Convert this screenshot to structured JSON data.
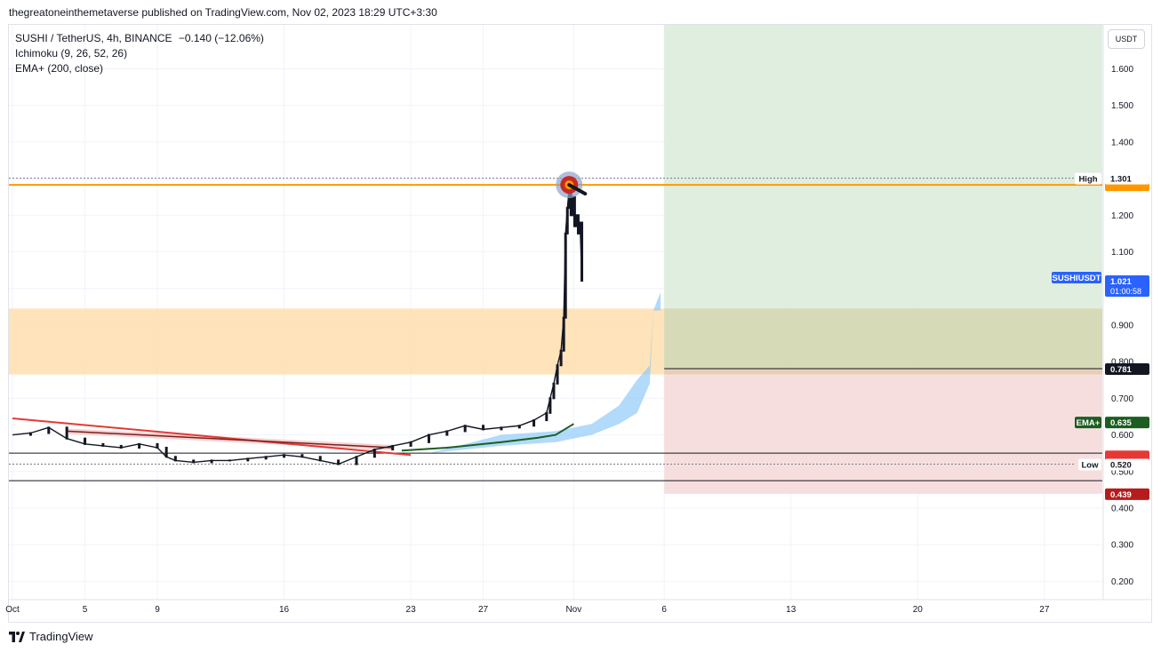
{
  "header": {
    "published_text": "thegreatoneinthemetaverse published on TradingView.com, Nov 02, 2023 18:29 UTC+3:30"
  },
  "legend": {
    "symbol_line": "SUSHI / TetherUS, 4h, BINANCE",
    "change": "−0.140 (−12.06%)",
    "indicator_1": "Ichimoku (9, 26, 52, 26)",
    "indicator_2": "EMA+ (200, close)"
  },
  "currency_button": "USDT",
  "footer": {
    "brand": "TradingView"
  },
  "colors": {
    "candle": "#131722",
    "orange_line": "#ff9800",
    "orange_zone": "#ffe0b2",
    "green_zone": "#d9ebd9",
    "red_zone": "#f7dcdc",
    "trend_red": "#e53935",
    "trend_dark_red": "#7b1f1f",
    "ema": "#1b5e20",
    "cloud_blue": "#90caf9",
    "price_tag_blue": "#2962ff",
    "price_tag_red": "#b71c1c",
    "ema_tag": "#1b5e20",
    "target_outer": "#90a4c8",
    "target_mid": "#c62828",
    "target_inner": "#ff9800"
  },
  "chart_data": {
    "type": "candlestick",
    "symbol": "SUSHIUSDT",
    "timeframe": "4h",
    "y_axis": {
      "ticks": [
        "1.600",
        "1.500",
        "1.400",
        "1.300",
        "1.200",
        "1.100",
        "1.000",
        "0.900",
        "0.800",
        "0.700",
        "0.600",
        "0.500",
        "0.400",
        "0.300",
        "0.200"
      ],
      "tick_values": [
        1.6,
        1.5,
        1.4,
        1.3,
        1.2,
        1.1,
        1.0,
        0.9,
        0.8,
        0.7,
        0.6,
        0.5,
        0.4,
        0.3,
        0.2
      ],
      "range": [
        0.15,
        1.72
      ]
    },
    "x_axis": {
      "ticks": [
        "Oct",
        "5",
        "9",
        "16",
        "23",
        "27",
        "Nov",
        "6",
        "13",
        "20",
        "27"
      ],
      "tick_days": [
        1,
        5,
        9,
        16,
        23,
        27,
        32,
        37,
        44,
        51,
        58
      ],
      "range_days": [
        0.8,
        61.2
      ]
    },
    "price_series": [
      {
        "day": 1.0,
        "price": 0.6
      },
      {
        "day": 2.0,
        "price": 0.605
      },
      {
        "day": 3.0,
        "price": 0.62
      },
      {
        "day": 4.0,
        "price": 0.59
      },
      {
        "day": 5.0,
        "price": 0.575
      },
      {
        "day": 6.0,
        "price": 0.57
      },
      {
        "day": 7.0,
        "price": 0.565
      },
      {
        "day": 8.0,
        "price": 0.575
      },
      {
        "day": 9.0,
        "price": 0.565
      },
      {
        "day": 9.5,
        "price": 0.54
      },
      {
        "day": 10.0,
        "price": 0.53
      },
      {
        "day": 11.0,
        "price": 0.525
      },
      {
        "day": 12.0,
        "price": 0.53
      },
      {
        "day": 13.0,
        "price": 0.53
      },
      {
        "day": 14.0,
        "price": 0.535
      },
      {
        "day": 15.0,
        "price": 0.54
      },
      {
        "day": 16.0,
        "price": 0.545
      },
      {
        "day": 17.0,
        "price": 0.54
      },
      {
        "day": 18.0,
        "price": 0.53
      },
      {
        "day": 19.0,
        "price": 0.52
      },
      {
        "day": 20.0,
        "price": 0.54
      },
      {
        "day": 21.0,
        "price": 0.56
      },
      {
        "day": 22.0,
        "price": 0.57
      },
      {
        "day": 23.0,
        "price": 0.58
      },
      {
        "day": 24.0,
        "price": 0.6
      },
      {
        "day": 25.0,
        "price": 0.61
      },
      {
        "day": 26.0,
        "price": 0.625
      },
      {
        "day": 27.0,
        "price": 0.615
      },
      {
        "day": 28.0,
        "price": 0.62
      },
      {
        "day": 29.0,
        "price": 0.625
      },
      {
        "day": 29.8,
        "price": 0.64
      },
      {
        "day": 30.5,
        "price": 0.66
      },
      {
        "day": 30.7,
        "price": 0.7
      },
      {
        "day": 30.9,
        "price": 0.74
      },
      {
        "day": 31.1,
        "price": 0.79
      },
      {
        "day": 31.3,
        "price": 0.83
      },
      {
        "day": 31.45,
        "price": 0.92
      },
      {
        "day": 31.55,
        "price": 1.15
      },
      {
        "day": 31.65,
        "price": 1.22
      },
      {
        "day": 31.75,
        "price": 1.27
      },
      {
        "day": 31.85,
        "price": 1.2
      },
      {
        "day": 31.95,
        "price": 1.25
      },
      {
        "day": 32.05,
        "price": 1.17
      },
      {
        "day": 32.15,
        "price": 1.2
      },
      {
        "day": 32.25,
        "price": 1.15
      },
      {
        "day": 32.35,
        "price": 1.18
      },
      {
        "day": 32.45,
        "price": 1.021
      }
    ],
    "ema_200": [
      {
        "day": 22.5,
        "price": 0.557
      },
      {
        "day": 25.0,
        "price": 0.565
      },
      {
        "day": 28.0,
        "price": 0.58
      },
      {
        "day": 30.0,
        "price": 0.592
      },
      {
        "day": 31.0,
        "price": 0.6
      },
      {
        "day": 32.0,
        "price": 0.63
      }
    ],
    "ichimoku_cloud_upper": [
      {
        "day": 24.0,
        "price": 0.55
      },
      {
        "day": 28.0,
        "price": 0.6
      },
      {
        "day": 31.0,
        "price": 0.61
      },
      {
        "day": 33.0,
        "price": 0.63
      },
      {
        "day": 34.5,
        "price": 0.68
      },
      {
        "day": 35.5,
        "price": 0.75
      },
      {
        "day": 36.2,
        "price": 0.79
      },
      {
        "day": 36.4,
        "price": 0.94
      },
      {
        "day": 36.8,
        "price": 0.99
      }
    ],
    "ichimoku_cloud_lower": [
      {
        "day": 24.0,
        "price": 0.55
      },
      {
        "day": 28.0,
        "price": 0.57
      },
      {
        "day": 31.0,
        "price": 0.58
      },
      {
        "day": 33.0,
        "price": 0.6
      },
      {
        "day": 34.5,
        "price": 0.63
      },
      {
        "day": 35.5,
        "price": 0.66
      },
      {
        "day": 36.2,
        "price": 0.74
      },
      {
        "day": 36.4,
        "price": 0.94
      },
      {
        "day": 36.8,
        "price": 0.94
      }
    ],
    "resistance_line": {
      "price": 1.283
    },
    "supply_zone": {
      "top": 0.945,
      "bottom": 0.765
    },
    "support_lines": [
      0.55,
      0.475
    ],
    "trendline_red": {
      "start": {
        "day": 1.0,
        "price": 0.645
      },
      "end": {
        "day": 23.0,
        "price": 0.545
      }
    },
    "trendline_dark": {
      "start": {
        "day": 4.0,
        "price": 0.61
      },
      "end": {
        "day": 22.0,
        "price": 0.565
      }
    },
    "position": {
      "start_day": 37.0,
      "end_day": 61.2,
      "entry": 0.781,
      "target_top": 1.72,
      "stop": 0.439
    },
    "high": {
      "label": "High",
      "value": "1.301",
      "price": 1.301
    },
    "low": {
      "label": "Low",
      "value": "0.520",
      "price": 0.52
    },
    "price_tags": [
      {
        "label": "SUSHIUSDT",
        "value": "1.021",
        "sub": "01:00:58",
        "price": 1.021
      },
      {
        "label": "",
        "value": "0.781",
        "price": 0.781
      },
      {
        "label": "EMA+",
        "value": "0.635",
        "price": 0.635
      },
      {
        "label": "",
        "value": "0.439",
        "price": 0.439
      }
    ],
    "orange_tag_price": 1.283,
    "red_tag_price": 0.545
  }
}
